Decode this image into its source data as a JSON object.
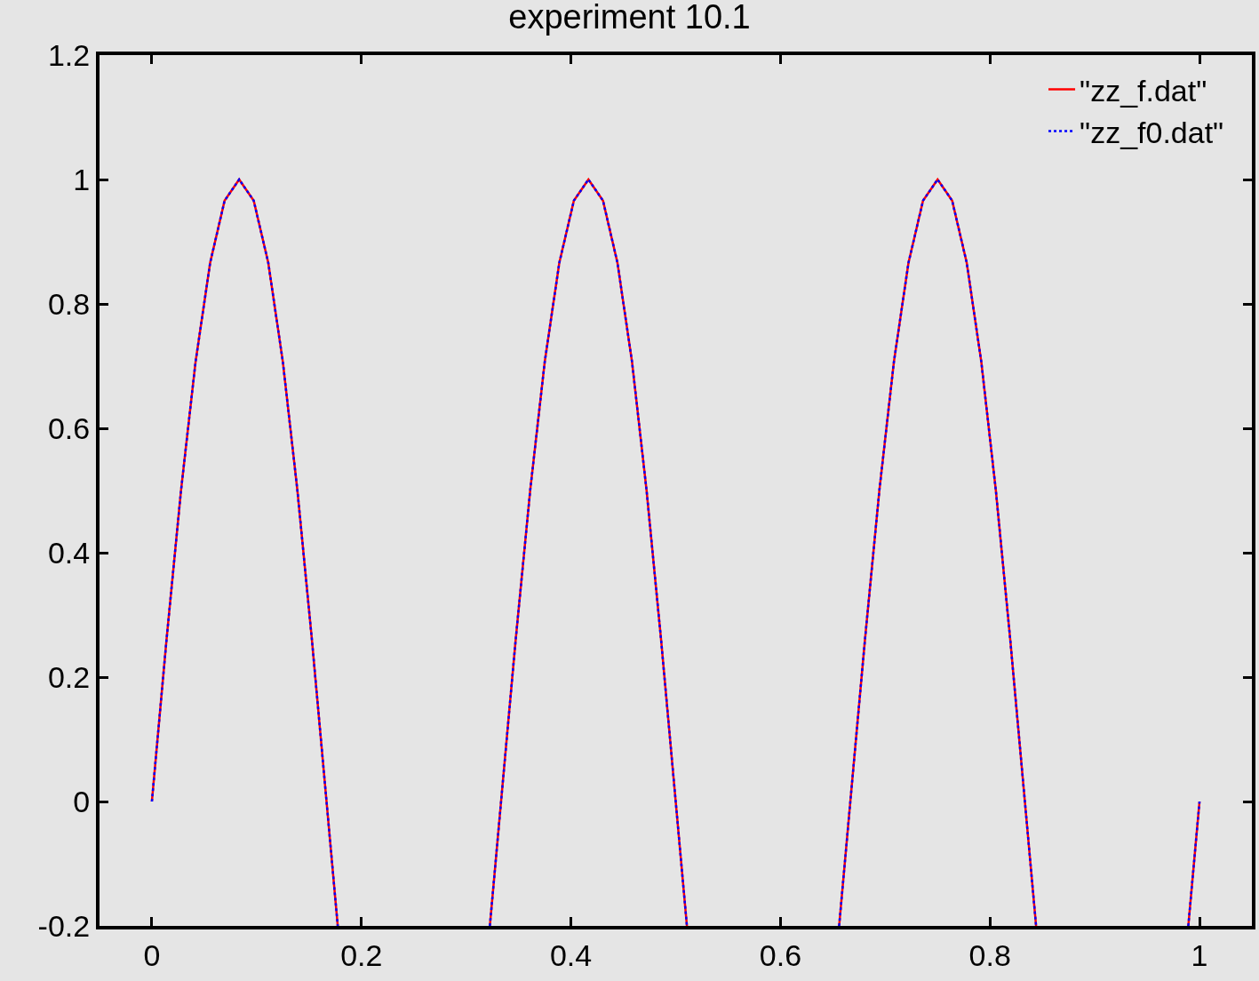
{
  "chart_data": {
    "type": "line",
    "title": "experiment 10.1",
    "x": [
      0,
      0.0139,
      0.0278,
      0.0417,
      0.0556,
      0.0694,
      0.0833,
      0.0972,
      0.1111,
      0.125,
      0.1389,
      0.1528,
      0.1667,
      0.1774,
      0.25,
      0.3226,
      0.3333,
      0.3472,
      0.3611,
      0.375,
      0.3889,
      0.4028,
      0.4167,
      0.4306,
      0.4444,
      0.4583,
      0.4722,
      0.4861,
      0.5,
      0.5107,
      0.58,
      0.656,
      0.6667,
      0.6806,
      0.6944,
      0.7083,
      0.7222,
      0.7361,
      0.75,
      0.7639,
      0.7778,
      0.7917,
      0.8056,
      0.8194,
      0.8333,
      0.844,
      0.92,
      0.9893,
      1
    ],
    "series": [
      {
        "name": "\"zz_f.dat\"",
        "color": "#ff0000",
        "line_style": "solid",
        "values": [
          0,
          0.259,
          0.5,
          0.707,
          0.866,
          0.966,
          1,
          0.966,
          0.866,
          0.707,
          0.5,
          0.259,
          0,
          -0.2,
          null,
          -0.2,
          0,
          0.259,
          0.5,
          0.707,
          0.866,
          0.966,
          1,
          0.966,
          0.866,
          0.707,
          0.5,
          0.259,
          0,
          -0.2,
          null,
          -0.2,
          0,
          0.259,
          0.5,
          0.707,
          0.866,
          0.966,
          1,
          0.966,
          0.866,
          0.707,
          0.5,
          0.259,
          0,
          -0.2,
          null,
          -0.2,
          0
        ]
      },
      {
        "name": "\"zz_f0.dat\"",
        "color": "#0000ff",
        "line_style": "dotted",
        "values": [
          0,
          0.259,
          0.5,
          0.707,
          0.866,
          0.966,
          1,
          0.966,
          0.866,
          0.707,
          0.5,
          0.259,
          0,
          -0.2,
          null,
          -0.2,
          0,
          0.259,
          0.5,
          0.707,
          0.866,
          0.966,
          1,
          0.966,
          0.866,
          0.707,
          0.5,
          0.259,
          0,
          -0.2,
          null,
          -0.2,
          0,
          0.259,
          0.5,
          0.707,
          0.866,
          0.966,
          1,
          0.966,
          0.866,
          0.707,
          0.5,
          0.259,
          0,
          -0.2,
          null,
          -0.2,
          0
        ]
      }
    ],
    "xlim": [
      -0.05,
      1.05
    ],
    "ylim": [
      -0.2,
      1.2
    ],
    "xticks": [
      0,
      0.2,
      0.4,
      0.6,
      0.8,
      1
    ],
    "yticks": [
      -0.2,
      0,
      0.2,
      0.4,
      0.6,
      0.8,
      1,
      1.2
    ],
    "grid": false,
    "legend": "top right",
    "marker": "none"
  }
}
